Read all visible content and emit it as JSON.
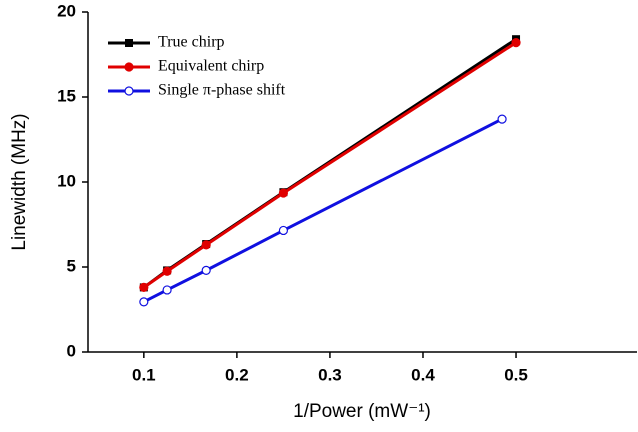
{
  "chart_data": {
    "type": "line",
    "x_label": "1/Power (mW⁻¹)",
    "y_label": "Linewidth (MHz)",
    "xlim": [
      0.04,
      0.63
    ],
    "ylim": [
      0,
      20
    ],
    "xticks": [
      0.1,
      0.2,
      0.3,
      0.4,
      0.5
    ],
    "yticks": [
      0,
      5,
      10,
      15,
      20
    ],
    "legend": "upper-left",
    "series": [
      {
        "name": "True chirp",
        "color": "#000000",
        "marker": "square",
        "x": [
          0.1,
          0.125,
          0.167,
          0.25,
          0.5
        ],
        "values": [
          3.8,
          4.8,
          6.35,
          9.4,
          18.4
        ]
      },
      {
        "name": "Equivalent chirp",
        "color": "#e00000",
        "marker": "circle",
        "x": [
          0.1,
          0.125,
          0.167,
          0.25,
          0.5
        ],
        "values": [
          3.8,
          4.75,
          6.3,
          9.35,
          18.2
        ]
      },
      {
        "name": "Single π-phase shift",
        "color": "#1010e0",
        "marker": "open-circle",
        "x": [
          0.1,
          0.125,
          0.167,
          0.25,
          0.485
        ],
        "values": [
          2.95,
          3.65,
          4.8,
          7.15,
          13.7
        ]
      }
    ]
  }
}
